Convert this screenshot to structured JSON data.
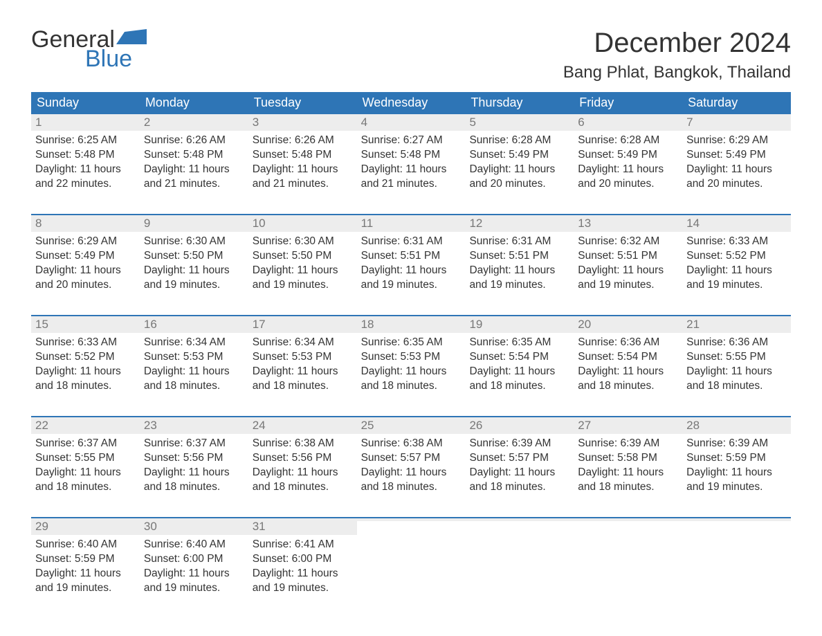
{
  "brand": {
    "word1": "General",
    "word2": "Blue",
    "accent_color": "#2e75b6"
  },
  "title": "December 2024",
  "location": "Bang Phlat, Bangkok, Thailand",
  "header_bg": "#2e75b6",
  "header_fg": "#ffffff",
  "daynum_bg": "#ededed",
  "daynum_fg": "#777777",
  "text_color": "#333333",
  "weekdays": [
    "Sunday",
    "Monday",
    "Tuesday",
    "Wednesday",
    "Thursday",
    "Friday",
    "Saturday"
  ],
  "weeks": [
    [
      {
        "n": "1",
        "sunrise": "Sunrise: 6:25 AM",
        "sunset": "Sunset: 5:48 PM",
        "d1": "Daylight: 11 hours",
        "d2": "and 22 minutes."
      },
      {
        "n": "2",
        "sunrise": "Sunrise: 6:26 AM",
        "sunset": "Sunset: 5:48 PM",
        "d1": "Daylight: 11 hours",
        "d2": "and 21 minutes."
      },
      {
        "n": "3",
        "sunrise": "Sunrise: 6:26 AM",
        "sunset": "Sunset: 5:48 PM",
        "d1": "Daylight: 11 hours",
        "d2": "and 21 minutes."
      },
      {
        "n": "4",
        "sunrise": "Sunrise: 6:27 AM",
        "sunset": "Sunset: 5:48 PM",
        "d1": "Daylight: 11 hours",
        "d2": "and 21 minutes."
      },
      {
        "n": "5",
        "sunrise": "Sunrise: 6:28 AM",
        "sunset": "Sunset: 5:49 PM",
        "d1": "Daylight: 11 hours",
        "d2": "and 20 minutes."
      },
      {
        "n": "6",
        "sunrise": "Sunrise: 6:28 AM",
        "sunset": "Sunset: 5:49 PM",
        "d1": "Daylight: 11 hours",
        "d2": "and 20 minutes."
      },
      {
        "n": "7",
        "sunrise": "Sunrise: 6:29 AM",
        "sunset": "Sunset: 5:49 PM",
        "d1": "Daylight: 11 hours",
        "d2": "and 20 minutes."
      }
    ],
    [
      {
        "n": "8",
        "sunrise": "Sunrise: 6:29 AM",
        "sunset": "Sunset: 5:49 PM",
        "d1": "Daylight: 11 hours",
        "d2": "and 20 minutes."
      },
      {
        "n": "9",
        "sunrise": "Sunrise: 6:30 AM",
        "sunset": "Sunset: 5:50 PM",
        "d1": "Daylight: 11 hours",
        "d2": "and 19 minutes."
      },
      {
        "n": "10",
        "sunrise": "Sunrise: 6:30 AM",
        "sunset": "Sunset: 5:50 PM",
        "d1": "Daylight: 11 hours",
        "d2": "and 19 minutes."
      },
      {
        "n": "11",
        "sunrise": "Sunrise: 6:31 AM",
        "sunset": "Sunset: 5:51 PM",
        "d1": "Daylight: 11 hours",
        "d2": "and 19 minutes."
      },
      {
        "n": "12",
        "sunrise": "Sunrise: 6:31 AM",
        "sunset": "Sunset: 5:51 PM",
        "d1": "Daylight: 11 hours",
        "d2": "and 19 minutes."
      },
      {
        "n": "13",
        "sunrise": "Sunrise: 6:32 AM",
        "sunset": "Sunset: 5:51 PM",
        "d1": "Daylight: 11 hours",
        "d2": "and 19 minutes."
      },
      {
        "n": "14",
        "sunrise": "Sunrise: 6:33 AM",
        "sunset": "Sunset: 5:52 PM",
        "d1": "Daylight: 11 hours",
        "d2": "and 19 minutes."
      }
    ],
    [
      {
        "n": "15",
        "sunrise": "Sunrise: 6:33 AM",
        "sunset": "Sunset: 5:52 PM",
        "d1": "Daylight: 11 hours",
        "d2": "and 18 minutes."
      },
      {
        "n": "16",
        "sunrise": "Sunrise: 6:34 AM",
        "sunset": "Sunset: 5:53 PM",
        "d1": "Daylight: 11 hours",
        "d2": "and 18 minutes."
      },
      {
        "n": "17",
        "sunrise": "Sunrise: 6:34 AM",
        "sunset": "Sunset: 5:53 PM",
        "d1": "Daylight: 11 hours",
        "d2": "and 18 minutes."
      },
      {
        "n": "18",
        "sunrise": "Sunrise: 6:35 AM",
        "sunset": "Sunset: 5:53 PM",
        "d1": "Daylight: 11 hours",
        "d2": "and 18 minutes."
      },
      {
        "n": "19",
        "sunrise": "Sunrise: 6:35 AM",
        "sunset": "Sunset: 5:54 PM",
        "d1": "Daylight: 11 hours",
        "d2": "and 18 minutes."
      },
      {
        "n": "20",
        "sunrise": "Sunrise: 6:36 AM",
        "sunset": "Sunset: 5:54 PM",
        "d1": "Daylight: 11 hours",
        "d2": "and 18 minutes."
      },
      {
        "n": "21",
        "sunrise": "Sunrise: 6:36 AM",
        "sunset": "Sunset: 5:55 PM",
        "d1": "Daylight: 11 hours",
        "d2": "and 18 minutes."
      }
    ],
    [
      {
        "n": "22",
        "sunrise": "Sunrise: 6:37 AM",
        "sunset": "Sunset: 5:55 PM",
        "d1": "Daylight: 11 hours",
        "d2": "and 18 minutes."
      },
      {
        "n": "23",
        "sunrise": "Sunrise: 6:37 AM",
        "sunset": "Sunset: 5:56 PM",
        "d1": "Daylight: 11 hours",
        "d2": "and 18 minutes."
      },
      {
        "n": "24",
        "sunrise": "Sunrise: 6:38 AM",
        "sunset": "Sunset: 5:56 PM",
        "d1": "Daylight: 11 hours",
        "d2": "and 18 minutes."
      },
      {
        "n": "25",
        "sunrise": "Sunrise: 6:38 AM",
        "sunset": "Sunset: 5:57 PM",
        "d1": "Daylight: 11 hours",
        "d2": "and 18 minutes."
      },
      {
        "n": "26",
        "sunrise": "Sunrise: 6:39 AM",
        "sunset": "Sunset: 5:57 PM",
        "d1": "Daylight: 11 hours",
        "d2": "and 18 minutes."
      },
      {
        "n": "27",
        "sunrise": "Sunrise: 6:39 AM",
        "sunset": "Sunset: 5:58 PM",
        "d1": "Daylight: 11 hours",
        "d2": "and 18 minutes."
      },
      {
        "n": "28",
        "sunrise": "Sunrise: 6:39 AM",
        "sunset": "Sunset: 5:59 PM",
        "d1": "Daylight: 11 hours",
        "d2": "and 19 minutes."
      }
    ],
    [
      {
        "n": "29",
        "sunrise": "Sunrise: 6:40 AM",
        "sunset": "Sunset: 5:59 PM",
        "d1": "Daylight: 11 hours",
        "d2": "and 19 minutes."
      },
      {
        "n": "30",
        "sunrise": "Sunrise: 6:40 AM",
        "sunset": "Sunset: 6:00 PM",
        "d1": "Daylight: 11 hours",
        "d2": "and 19 minutes."
      },
      {
        "n": "31",
        "sunrise": "Sunrise: 6:41 AM",
        "sunset": "Sunset: 6:00 PM",
        "d1": "Daylight: 11 hours",
        "d2": "and 19 minutes."
      },
      {
        "empty": true
      },
      {
        "empty": true
      },
      {
        "empty": true
      },
      {
        "empty": true
      }
    ]
  ]
}
